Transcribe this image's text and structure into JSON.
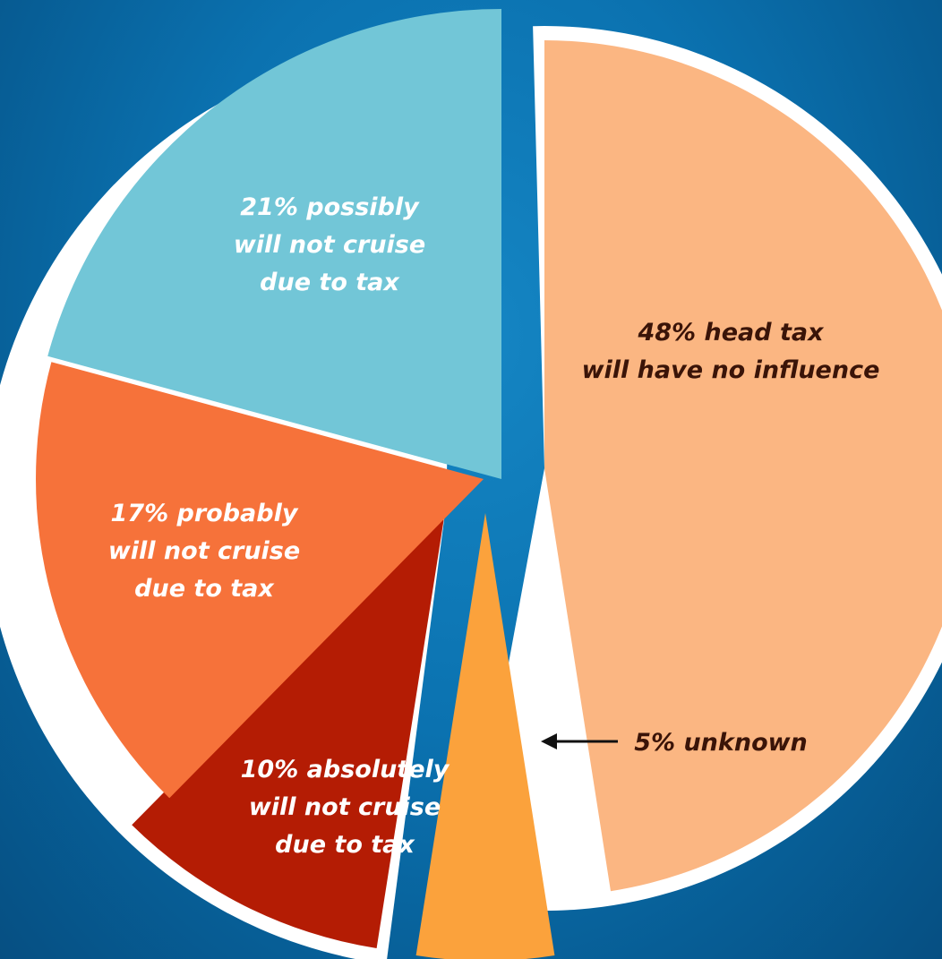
{
  "chart_data": {
    "type": "pie",
    "title": "",
    "slices": [
      {
        "name": "head tax will have no influence",
        "value": 48,
        "color": "#fbb682",
        "label_lines": [
          "48% head tax",
          "will have no influence"
        ],
        "label_color": "#3a1408"
      },
      {
        "name": "unknown",
        "value": 5,
        "color": "#fba23c",
        "label_lines": [
          "5% unknown"
        ],
        "label_color": "#3a1408"
      },
      {
        "name": "absolutely will not cruise due to tax",
        "value": 10,
        "color": "#b41c04",
        "label_lines": [
          "10% absolutely",
          "will not cruise",
          "due to tax"
        ],
        "label_color": "#ffffff"
      },
      {
        "name": "probably will not cruise due to tax",
        "value": 17,
        "color": "#f6723a",
        "label_lines": [
          "17% probably",
          "will not cruise",
          "due to tax"
        ],
        "label_color": "#ffffff"
      },
      {
        "name": "possibly will not cruise due to tax",
        "value": 21,
        "color": "#72c6d7",
        "label_lines": [
          "21% possibly",
          "will not cruise",
          "due to tax"
        ],
        "label_color": "#ffffff"
      }
    ],
    "legend": "none"
  }
}
